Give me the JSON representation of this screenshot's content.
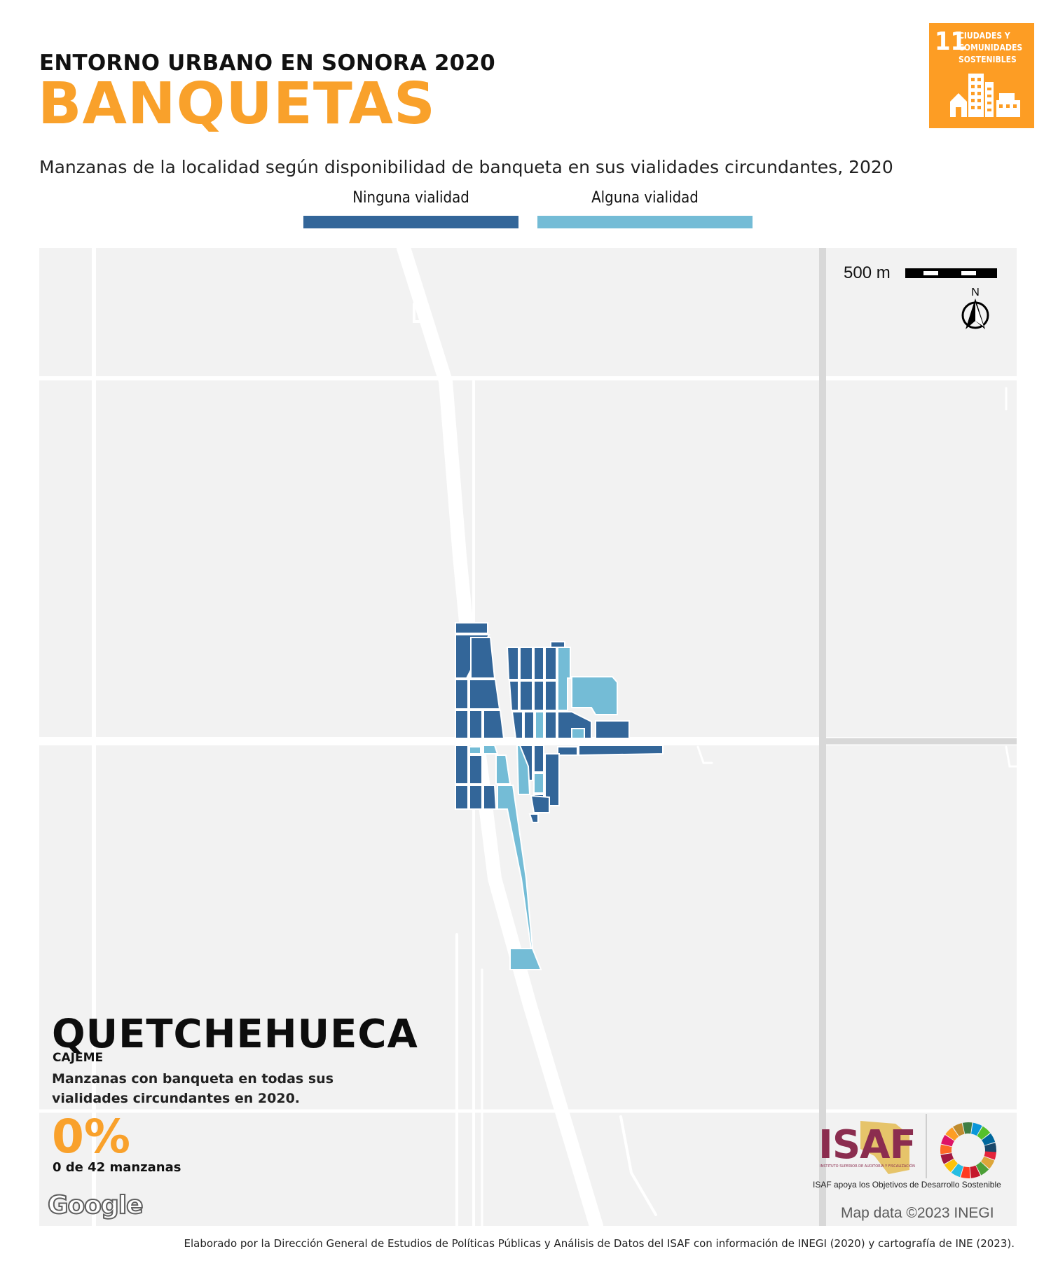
{
  "header": {
    "kicker": "ENTORNO URBANO EN SONORA 2020",
    "title": "BANQUETAS",
    "subtitle": "Manzanas de la localidad según disponibilidad de banqueta en sus vialidades circundantes, 2020"
  },
  "legend": {
    "items": [
      {
        "label": "Ninguna vialidad",
        "color": "#336699"
      },
      {
        "label": "Alguna vialidad",
        "color": "#74bcd6"
      }
    ]
  },
  "sdg_badge": {
    "number": "11",
    "text": "CIUDADES Y\nCOMUNIDADES\nSOSTENIBLES",
    "color": "#fd9d24",
    "icon": "city-buildings-icon"
  },
  "map": {
    "scale_label": "500 m",
    "north_label": "N",
    "attribution": "Map data ©2023 INEGI",
    "google_label": "Google"
  },
  "summary": {
    "locality": "QUETCHEHUECA",
    "municipality": "CAJEME",
    "description": "Manzanas con banqueta en todas sus vialidades circundantes en 2020.",
    "percent": "0%",
    "count_text": "0 de 42 manzanas"
  },
  "isaf": {
    "logo_text": "ISAF",
    "logo_subtext": "INSTITUTO SUPERIOR DE AUDITORÍA Y FISCALIZACIÓN",
    "caption": "ISAF apoya los Objetivos de Desarrollo Sostenible"
  },
  "footer": {
    "credit": "Elaborado por la Dirección General de Estudios de Políticas Públicas y Análisis de Datos del ISAF con información de INEGI (2020) y cartografía de INE (2023)."
  }
}
